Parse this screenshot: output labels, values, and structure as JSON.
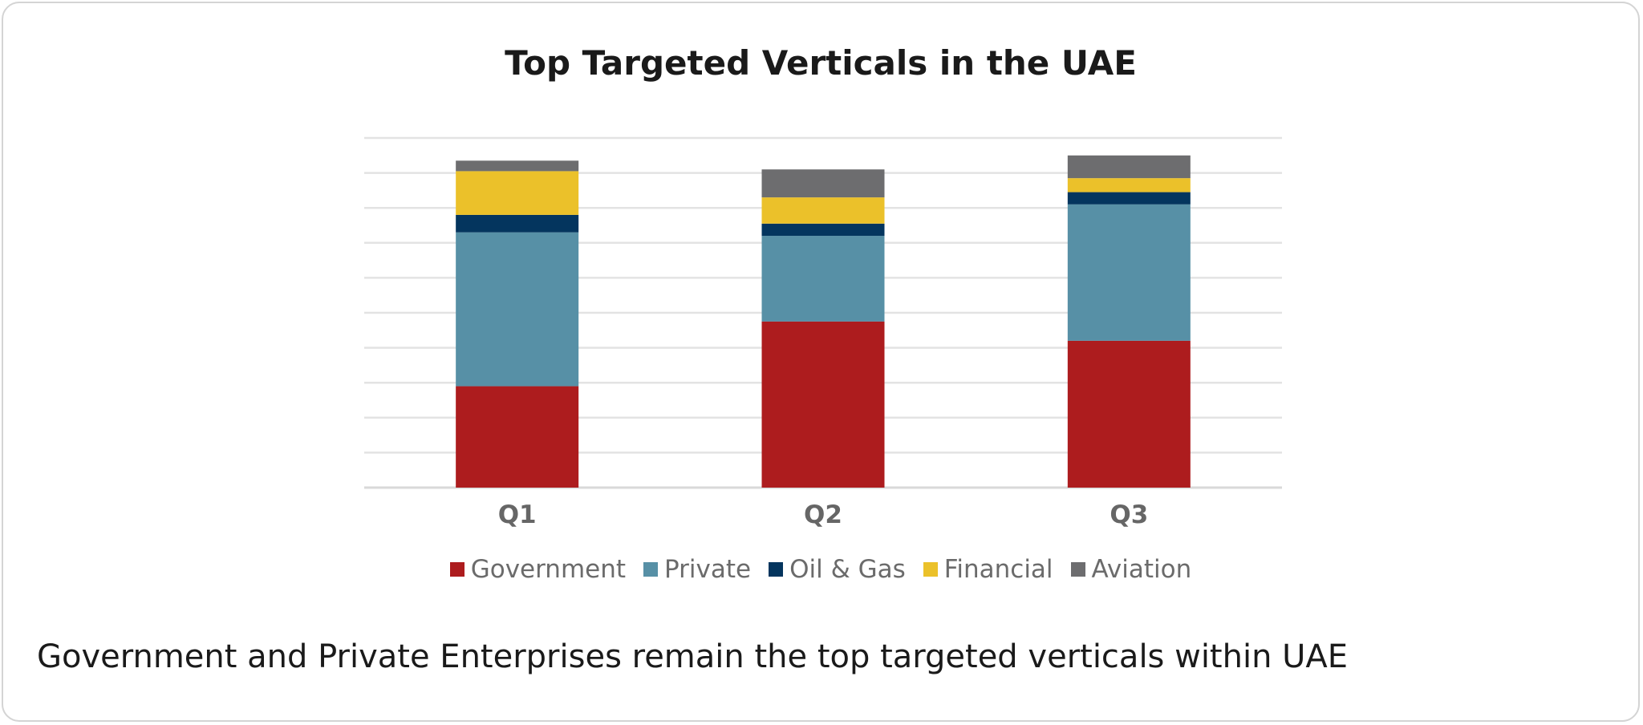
{
  "chart_data": {
    "type": "bar",
    "stacked": true,
    "title": "Top Targeted Verticals in the UAE",
    "categories": [
      "Q1",
      "Q2",
      "Q3"
    ],
    "series": [
      {
        "name": "Government",
        "color": "#ad1c1e",
        "values": [
          29,
          47.5,
          42
        ]
      },
      {
        "name": "Private",
        "color": "#5790a6",
        "values": [
          44,
          24.5,
          39
        ]
      },
      {
        "name": "Oil & Gas",
        "color": "#04355e",
        "values": [
          5,
          3.5,
          3.5
        ]
      },
      {
        "name": "Financial",
        "color": "#ebc12a",
        "values": [
          12.5,
          7.5,
          4
        ]
      },
      {
        "name": "Aviation",
        "color": "#6d6d6f",
        "values": [
          3,
          8,
          6.5
        ]
      }
    ],
    "ylim": [
      0,
      100
    ],
    "grid": true,
    "gridlines": 11,
    "legend": "bottom"
  },
  "caption": "Government and Private Enterprises remain the top targeted verticals within UAE"
}
